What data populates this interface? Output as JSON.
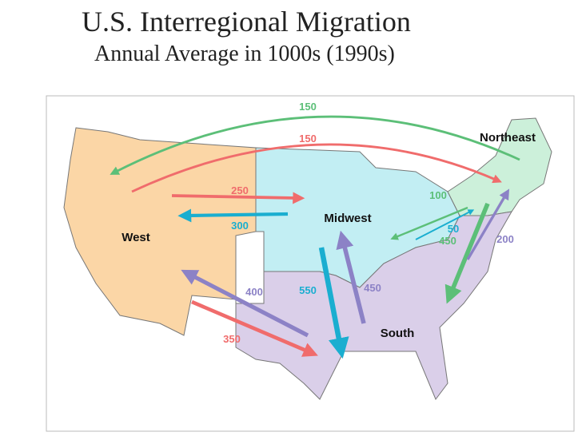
{
  "header": {
    "title": "U.S. Interregional Migration",
    "subtitle": "Annual Average in 1000s (1990s)"
  },
  "regions": [
    {
      "name": "West",
      "color": "#fbd6a6"
    },
    {
      "name": "Midwest",
      "color": "#c2eef3"
    },
    {
      "name": "Northeast",
      "color": "#ccf0da"
    },
    {
      "name": "South",
      "color": "#dacfe9"
    }
  ],
  "flows": [
    {
      "value": 150,
      "color": "#5cbf78"
    },
    {
      "value": 150,
      "color": "#f06c6c"
    },
    {
      "value": 250,
      "color": "#f06c6c"
    },
    {
      "value": 300,
      "color": "#1aaed0"
    },
    {
      "value": 100,
      "color": "#5cbf78"
    },
    {
      "value": 50,
      "color": "#1aaed0"
    },
    {
      "value": 450,
      "color": "#5cbf78"
    },
    {
      "value": 200,
      "color": "#8c82c6"
    },
    {
      "value": 550,
      "color": "#1aaed0"
    },
    {
      "value": 450,
      "color": "#8c82c6"
    },
    {
      "value": 400,
      "color": "#8c82c6"
    },
    {
      "value": 350,
      "color": "#f06c6c"
    }
  ]
}
